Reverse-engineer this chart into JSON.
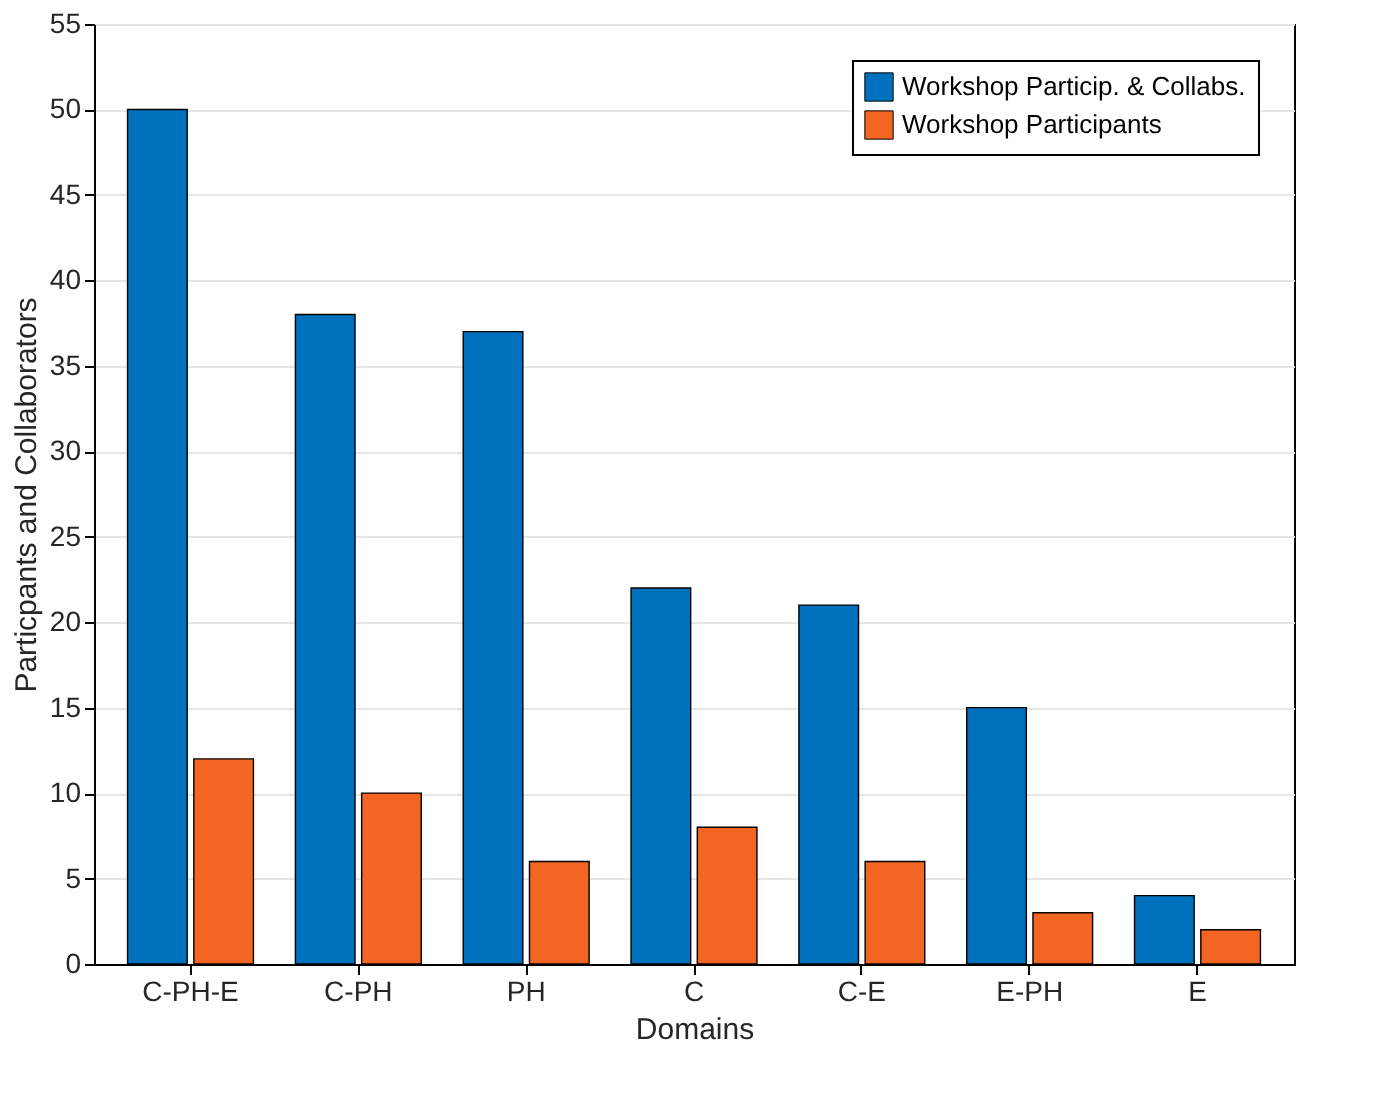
{
  "chart_data": {
    "type": "bar",
    "xlabel": "Domains",
    "ylabel": "Particpants and Collaborators",
    "categories": [
      "C-PH-E",
      "C-PH",
      "PH",
      "C",
      "C-E",
      "E-PH",
      "E"
    ],
    "series": [
      {
        "name": "Workshop Particip. & Collabs.",
        "color": "#0072bd",
        "values": [
          50,
          38,
          37,
          22,
          21,
          15,
          4
        ]
      },
      {
        "name": "Workshop Participants",
        "color": "#f26522",
        "values": [
          12,
          10,
          6,
          8,
          6,
          3,
          2
        ]
      }
    ],
    "ylim": [
      0,
      55
    ],
    "yticks": [
      0,
      5,
      10,
      15,
      20,
      25,
      30,
      35,
      40,
      45,
      50,
      55
    ],
    "grid": "y",
    "legend": "top right"
  }
}
